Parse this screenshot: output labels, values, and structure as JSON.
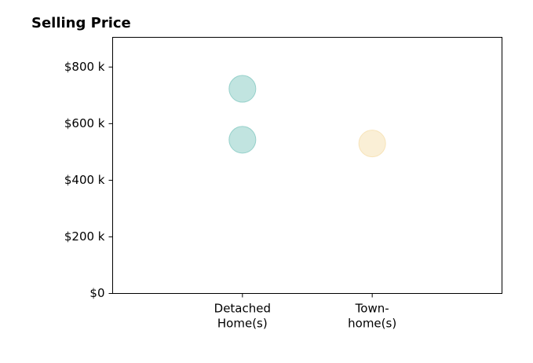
{
  "chart_data": {
    "type": "scatter",
    "title": "Selling Price",
    "xlabel": "",
    "ylabel": "",
    "categories": [
      "Detached\nHome(s)",
      "Town-\nhome(s)"
    ],
    "y_ticks": [
      "$0",
      "$200 k",
      "$400 k",
      "$600 k",
      "$800 k"
    ],
    "y_tick_values": [
      0,
      200000,
      400000,
      600000,
      800000
    ],
    "ylim": [
      0,
      905000
    ],
    "x_range": [
      0,
      3
    ],
    "grid": false,
    "legend": "none",
    "series": [
      {
        "category": "Detached\nHome(s)",
        "x": 1,
        "values": [
          723000,
          543000
        ],
        "color": "#8ecdc6"
      },
      {
        "category": "Town-\nhome(s)",
        "x": 2,
        "values": [
          530000
        ],
        "color": "#f6e1b4"
      }
    ]
  }
}
